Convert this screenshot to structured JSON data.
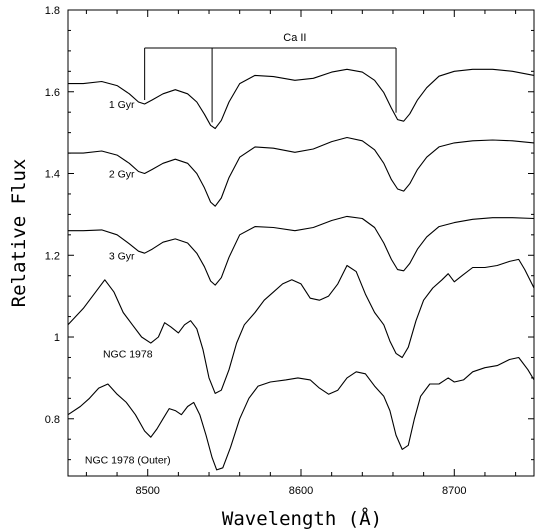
{
  "chart_data": {
    "type": "line",
    "xlabel": "Wavelength (Å)",
    "ylabel": "Relative Flux",
    "xlim": [
      8448,
      8752
    ],
    "ylim": [
      0.66,
      1.8
    ],
    "x_ticks": [
      8500,
      8600,
      8700
    ],
    "y_ticks": [
      0.8,
      1,
      1.2,
      1.4,
      1.6,
      1.8
    ],
    "y_tick_labels": [
      "0.8",
      "1",
      "1.2",
      "1.4",
      "1.6",
      "1.8"
    ],
    "grid": false,
    "annotation": {
      "text": "Ca II",
      "lines_x": [
        8498,
        8542,
        8662
      ]
    },
    "series": [
      {
        "name": "1 Gyr",
        "label_at": [
          8483,
          1.57
        ],
        "points": [
          [
            8448,
            1.62
          ],
          [
            8458,
            1.62
          ],
          [
            8470,
            1.625
          ],
          [
            8480,
            1.615
          ],
          [
            8488,
            1.595
          ],
          [
            8494,
            1.575
          ],
          [
            8498,
            1.57
          ],
          [
            8503,
            1.58
          ],
          [
            8510,
            1.595
          ],
          [
            8518,
            1.605
          ],
          [
            8526,
            1.595
          ],
          [
            8532,
            1.575
          ],
          [
            8537,
            1.545
          ],
          [
            8541,
            1.518
          ],
          [
            8544,
            1.51
          ],
          [
            8548,
            1.53
          ],
          [
            8553,
            1.575
          ],
          [
            8560,
            1.62
          ],
          [
            8570,
            1.64
          ],
          [
            8582,
            1.637
          ],
          [
            8596,
            1.628
          ],
          [
            8608,
            1.633
          ],
          [
            8620,
            1.648
          ],
          [
            8630,
            1.655
          ],
          [
            8640,
            1.648
          ],
          [
            8648,
            1.628
          ],
          [
            8654,
            1.598
          ],
          [
            8659,
            1.56
          ],
          [
            8663,
            1.532
          ],
          [
            8667,
            1.528
          ],
          [
            8671,
            1.546
          ],
          [
            8676,
            1.58
          ],
          [
            8682,
            1.61
          ],
          [
            8690,
            1.638
          ],
          [
            8700,
            1.65
          ],
          [
            8712,
            1.655
          ],
          [
            8725,
            1.655
          ],
          [
            8738,
            1.65
          ],
          [
            8752,
            1.64
          ]
        ]
      },
      {
        "name": "2 Gyr",
        "label_at": [
          8483,
          1.4
        ],
        "points": [
          [
            8448,
            1.45
          ],
          [
            8458,
            1.45
          ],
          [
            8470,
            1.455
          ],
          [
            8480,
            1.445
          ],
          [
            8488,
            1.425
          ],
          [
            8494,
            1.405
          ],
          [
            8498,
            1.4
          ],
          [
            8503,
            1.41
          ],
          [
            8510,
            1.425
          ],
          [
            8518,
            1.435
          ],
          [
            8526,
            1.425
          ],
          [
            8532,
            1.4
          ],
          [
            8537,
            1.365
          ],
          [
            8541,
            1.33
          ],
          [
            8544,
            1.32
          ],
          [
            8548,
            1.34
          ],
          [
            8553,
            1.39
          ],
          [
            8560,
            1.44
          ],
          [
            8570,
            1.465
          ],
          [
            8582,
            1.462
          ],
          [
            8596,
            1.452
          ],
          [
            8608,
            1.46
          ],
          [
            8620,
            1.478
          ],
          [
            8630,
            1.488
          ],
          [
            8640,
            1.48
          ],
          [
            8648,
            1.458
          ],
          [
            8654,
            1.425
          ],
          [
            8659,
            1.385
          ],
          [
            8663,
            1.362
          ],
          [
            8667,
            1.357
          ],
          [
            8671,
            1.375
          ],
          [
            8676,
            1.41
          ],
          [
            8682,
            1.44
          ],
          [
            8690,
            1.465
          ],
          [
            8700,
            1.475
          ],
          [
            8712,
            1.48
          ],
          [
            8725,
            1.482
          ],
          [
            8738,
            1.48
          ],
          [
            8752,
            1.475
          ]
        ]
      },
      {
        "name": "3 Gyr",
        "label_at": [
          8483,
          1.2
        ],
        "points": [
          [
            8448,
            1.26
          ],
          [
            8458,
            1.26
          ],
          [
            8470,
            1.262
          ],
          [
            8480,
            1.25
          ],
          [
            8488,
            1.228
          ],
          [
            8494,
            1.21
          ],
          [
            8498,
            1.205
          ],
          [
            8503,
            1.215
          ],
          [
            8510,
            1.232
          ],
          [
            8518,
            1.24
          ],
          [
            8526,
            1.23
          ],
          [
            8532,
            1.205
          ],
          [
            8537,
            1.172
          ],
          [
            8541,
            1.137
          ],
          [
            8544,
            1.127
          ],
          [
            8548,
            1.145
          ],
          [
            8553,
            1.195
          ],
          [
            8560,
            1.25
          ],
          [
            8570,
            1.27
          ],
          [
            8582,
            1.268
          ],
          [
            8596,
            1.26
          ],
          [
            8608,
            1.268
          ],
          [
            8620,
            1.285
          ],
          [
            8630,
            1.295
          ],
          [
            8640,
            1.29
          ],
          [
            8648,
            1.268
          ],
          [
            8654,
            1.23
          ],
          [
            8659,
            1.19
          ],
          [
            8663,
            1.165
          ],
          [
            8667,
            1.162
          ],
          [
            8671,
            1.18
          ],
          [
            8676,
            1.215
          ],
          [
            8682,
            1.245
          ],
          [
            8690,
            1.27
          ],
          [
            8700,
            1.28
          ],
          [
            8712,
            1.288
          ],
          [
            8725,
            1.292
          ],
          [
            8738,
            1.292
          ],
          [
            8752,
            1.29
          ]
        ]
      },
      {
        "name": "NGC 1978",
        "label_at": [
          8487,
          0.96
        ],
        "points": [
          [
            8448,
            1.03
          ],
          [
            8458,
            1.07
          ],
          [
            8466,
            1.11
          ],
          [
            8472,
            1.14
          ],
          [
            8478,
            1.11
          ],
          [
            8484,
            1.06
          ],
          [
            8490,
            1.03
          ],
          [
            8496,
            1.0
          ],
          [
            8502,
            0.985
          ],
          [
            8507,
            1.0
          ],
          [
            8511,
            1.035
          ],
          [
            8515,
            1.025
          ],
          [
            8520,
            1.01
          ],
          [
            8524,
            1.03
          ],
          [
            8528,
            1.04
          ],
          [
            8532,
            1.02
          ],
          [
            8536,
            0.97
          ],
          [
            8540,
            0.9
          ],
          [
            8544,
            0.862
          ],
          [
            8548,
            0.87
          ],
          [
            8553,
            0.92
          ],
          [
            8558,
            0.985
          ],
          [
            8563,
            1.03
          ],
          [
            8570,
            1.06
          ],
          [
            8576,
            1.09
          ],
          [
            8582,
            1.11
          ],
          [
            8588,
            1.13
          ],
          [
            8594,
            1.14
          ],
          [
            8600,
            1.13
          ],
          [
            8606,
            1.095
          ],
          [
            8612,
            1.09
          ],
          [
            8618,
            1.1
          ],
          [
            8624,
            1.13
          ],
          [
            8630,
            1.175
          ],
          [
            8636,
            1.16
          ],
          [
            8642,
            1.105
          ],
          [
            8648,
            1.06
          ],
          [
            8654,
            1.03
          ],
          [
            8658,
            0.99
          ],
          [
            8662,
            0.96
          ],
          [
            8666,
            0.95
          ],
          [
            8670,
            0.975
          ],
          [
            8675,
            1.04
          ],
          [
            8680,
            1.09
          ],
          [
            8686,
            1.12
          ],
          [
            8692,
            1.14
          ],
          [
            8696,
            1.155
          ],
          [
            8700,
            1.135
          ],
          [
            8705,
            1.15
          ],
          [
            8712,
            1.17
          ],
          [
            8720,
            1.17
          ],
          [
            8728,
            1.175
          ],
          [
            8736,
            1.185
          ],
          [
            8742,
            1.19
          ],
          [
            8746,
            1.165
          ],
          [
            8752,
            1.12
          ]
        ]
      },
      {
        "name": "NGC 1978 (Outer)",
        "label_at": [
          8487,
          0.7
        ],
        "points": [
          [
            8448,
            0.81
          ],
          [
            8456,
            0.83
          ],
          [
            8462,
            0.85
          ],
          [
            8468,
            0.875
          ],
          [
            8474,
            0.885
          ],
          [
            8480,
            0.86
          ],
          [
            8486,
            0.84
          ],
          [
            8492,
            0.81
          ],
          [
            8498,
            0.77
          ],
          [
            8502,
            0.755
          ],
          [
            8506,
            0.775
          ],
          [
            8510,
            0.8
          ],
          [
            8514,
            0.825
          ],
          [
            8518,
            0.82
          ],
          [
            8522,
            0.81
          ],
          [
            8526,
            0.83
          ],
          [
            8530,
            0.84
          ],
          [
            8534,
            0.81
          ],
          [
            8538,
            0.76
          ],
          [
            8542,
            0.705
          ],
          [
            8545,
            0.675
          ],
          [
            8549,
            0.68
          ],
          [
            8554,
            0.73
          ],
          [
            8560,
            0.8
          ],
          [
            8566,
            0.85
          ],
          [
            8572,
            0.88
          ],
          [
            8580,
            0.89
          ],
          [
            8590,
            0.895
          ],
          [
            8598,
            0.9
          ],
          [
            8606,
            0.895
          ],
          [
            8612,
            0.875
          ],
          [
            8618,
            0.86
          ],
          [
            8624,
            0.87
          ],
          [
            8630,
            0.9
          ],
          [
            8636,
            0.915
          ],
          [
            8642,
            0.91
          ],
          [
            8648,
            0.88
          ],
          [
            8654,
            0.855
          ],
          [
            8658,
            0.82
          ],
          [
            8662,
            0.76
          ],
          [
            8666,
            0.725
          ],
          [
            8670,
            0.735
          ],
          [
            8674,
            0.8
          ],
          [
            8678,
            0.855
          ],
          [
            8684,
            0.885
          ],
          [
            8690,
            0.885
          ],
          [
            8696,
            0.9
          ],
          [
            8700,
            0.89
          ],
          [
            8706,
            0.895
          ],
          [
            8712,
            0.915
          ],
          [
            8720,
            0.925
          ],
          [
            8728,
            0.93
          ],
          [
            8736,
            0.945
          ],
          [
            8742,
            0.95
          ],
          [
            8748,
            0.92
          ],
          [
            8752,
            0.895
          ]
        ]
      }
    ]
  }
}
